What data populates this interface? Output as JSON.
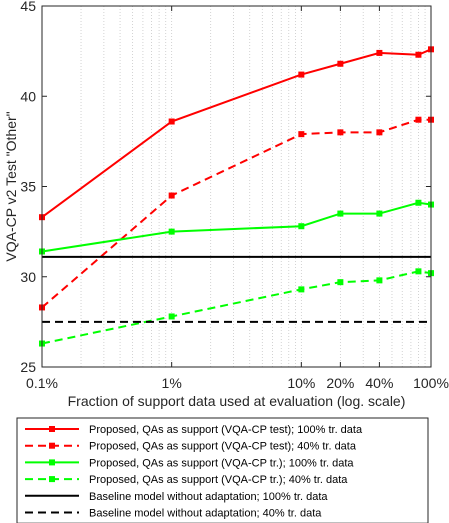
{
  "chart_data": {
    "type": "line",
    "title": "",
    "xlabel": "Fraction of support data used at evaluation (log. scale)",
    "ylabel": "VQA-CP v2 Test \"Other\"",
    "xscale": "log",
    "xlim": [
      0.1,
      100
    ],
    "ylim": [
      25,
      45
    ],
    "grid": "x-minor dotted",
    "legend_position": "bottom-outside",
    "x_ticks": [
      {
        "value": 0.1,
        "label": "0.1%"
      },
      {
        "value": 1,
        "label": "1%"
      },
      {
        "value": 10,
        "label": "10%"
      },
      {
        "value": 20,
        "label": "20%"
      },
      {
        "value": 40,
        "label": "40%"
      },
      {
        "value": 100,
        "label": "100%"
      }
    ],
    "y_ticks": [
      {
        "value": 25,
        "label": "25"
      },
      {
        "value": 30,
        "label": "30"
      },
      {
        "value": 35,
        "label": "35"
      },
      {
        "value": 40,
        "label": "40"
      },
      {
        "value": 45,
        "label": "45"
      }
    ],
    "series": [
      {
        "name": "Proposed, QAs as support (VQA-CP test); 100% tr. data",
        "color": "#ff0000",
        "dash": "solid",
        "marker": "square",
        "x": [
          0.1,
          1,
          10,
          20,
          40,
          80,
          100
        ],
        "y": [
          33.3,
          38.6,
          41.2,
          41.8,
          42.4,
          42.3,
          42.6
        ]
      },
      {
        "name": "Proposed, QAs as support (VQA-CP test); 40% tr. data",
        "color": "#ff0000",
        "dash": "dashed",
        "marker": "square",
        "x": [
          0.1,
          1,
          10,
          20,
          40,
          80,
          100
        ],
        "y": [
          28.3,
          34.5,
          37.9,
          38.0,
          38.0,
          38.7,
          38.7
        ]
      },
      {
        "name": "Proposed, QAs as support (VQA-CP tr.); 100% tr. data",
        "color": "#00ff00",
        "dash": "solid",
        "marker": "square",
        "x": [
          0.1,
          1,
          10,
          20,
          40,
          80,
          100
        ],
        "y": [
          31.4,
          32.5,
          32.8,
          33.5,
          33.5,
          34.1,
          34.0
        ]
      },
      {
        "name": "Proposed, QAs as support (VQA-CP tr.); 40% tr. data",
        "color": "#00ff00",
        "dash": "dashed",
        "marker": "square",
        "x": [
          0.1,
          1,
          10,
          20,
          40,
          80,
          100
        ],
        "y": [
          26.3,
          27.8,
          29.3,
          29.7,
          29.8,
          30.3,
          30.2
        ]
      },
      {
        "name": "Baseline model without adaptation; 100% tr. data",
        "color": "#000000",
        "dash": "solid",
        "marker": "none",
        "x": [
          0.1,
          100
        ],
        "y": [
          31.1,
          31.1
        ]
      },
      {
        "name": "Baseline model without adaptation; 40% tr. data",
        "color": "#000000",
        "dash": "dashed",
        "marker": "none",
        "x": [
          0.1,
          100
        ],
        "y": [
          27.5,
          27.5
        ]
      }
    ]
  }
}
